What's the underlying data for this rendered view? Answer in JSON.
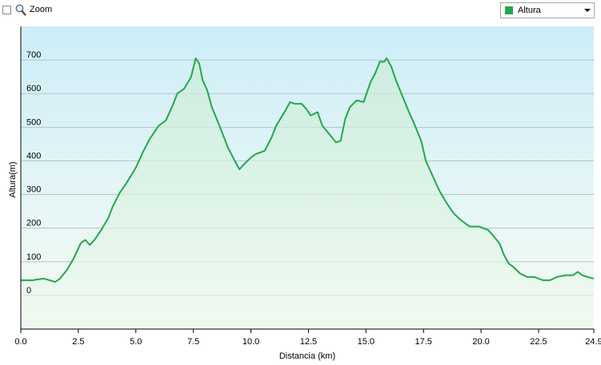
{
  "toolbar": {
    "zoom_label": "Zoom",
    "zoom_icon": "magnifier-icon",
    "series_select": {
      "selected": "Altura",
      "color": "#22a84a"
    }
  },
  "chart_data": {
    "type": "area",
    "xlabel": "Distancia  (km)",
    "ylabel": "Altura(m)",
    "xlim": [
      0,
      24.9
    ],
    "ylim": [
      -100,
      800
    ],
    "x_ticks": [
      0,
      2.5,
      5,
      7.5,
      10,
      12.5,
      15,
      17.5,
      20,
      22.5,
      24.9
    ],
    "x_tick_labels": [
      "0.0",
      "2.5",
      "5.0",
      "7.5",
      "10.0",
      "12.5",
      "15.0",
      "17.5",
      "20.0",
      "22.5",
      "24.9"
    ],
    "y_ticks": [
      0,
      100,
      200,
      300,
      400,
      500,
      600,
      700
    ],
    "y_tick_labels": [
      "0",
      "100",
      "200",
      "300",
      "400",
      "500",
      "600",
      "700"
    ],
    "grid": true,
    "line_color": "#22a84a",
    "background_gradient": [
      "#cdeef8",
      "#f7fbf4"
    ],
    "series": [
      {
        "name": "Altura",
        "x": [
          0,
          0.5,
          1,
          1.5,
          1.7,
          2,
          2.3,
          2.6,
          2.8,
          3,
          3.2,
          3.5,
          3.8,
          4,
          4.3,
          4.6,
          5,
          5.3,
          5.6,
          6,
          6.3,
          6.6,
          6.8,
          7.1,
          7.4,
          7.6,
          7.75,
          7.9,
          8.1,
          8.3,
          8.6,
          9,
          9.3,
          9.5,
          9.7,
          10,
          10.2,
          10.6,
          10.9,
          11.1,
          11.5,
          11.7,
          11.9,
          12.2,
          12.4,
          12.6,
          12.9,
          13.1,
          13.4,
          13.7,
          13.9,
          14.1,
          14.3,
          14.6,
          14.9,
          15.2,
          15.4,
          15.6,
          15.8,
          15.9,
          16.1,
          16.3,
          16.6,
          16.9,
          17.1,
          17.4,
          17.6,
          17.9,
          18.2,
          18.5,
          18.8,
          19.1,
          19.5,
          19.9,
          20.3,
          20.5,
          20.8,
          21,
          21.2,
          21.4,
          21.7,
          22,
          22.3,
          22.7,
          23,
          23.3,
          23.7,
          24,
          24.2,
          24.4,
          24.6,
          24.9
        ],
        "y": [
          45,
          45,
          50,
          40,
          50,
          75,
          110,
          155,
          165,
          150,
          165,
          195,
          230,
          265,
          305,
          335,
          380,
          425,
          465,
          505,
          520,
          565,
          600,
          615,
          650,
          705,
          690,
          640,
          610,
          560,
          510,
          440,
          400,
          375,
          390,
          410,
          420,
          430,
          470,
          505,
          550,
          575,
          570,
          570,
          555,
          535,
          545,
          505,
          480,
          455,
          460,
          525,
          560,
          580,
          575,
          635,
          660,
          695,
          695,
          705,
          680,
          640,
          590,
          540,
          510,
          460,
          400,
          355,
          310,
          275,
          245,
          225,
          205,
          205,
          195,
          180,
          155,
          120,
          95,
          85,
          65,
          55,
          55,
          45,
          45,
          55,
          60,
          60,
          70,
          60,
          55,
          50
        ]
      }
    ]
  }
}
